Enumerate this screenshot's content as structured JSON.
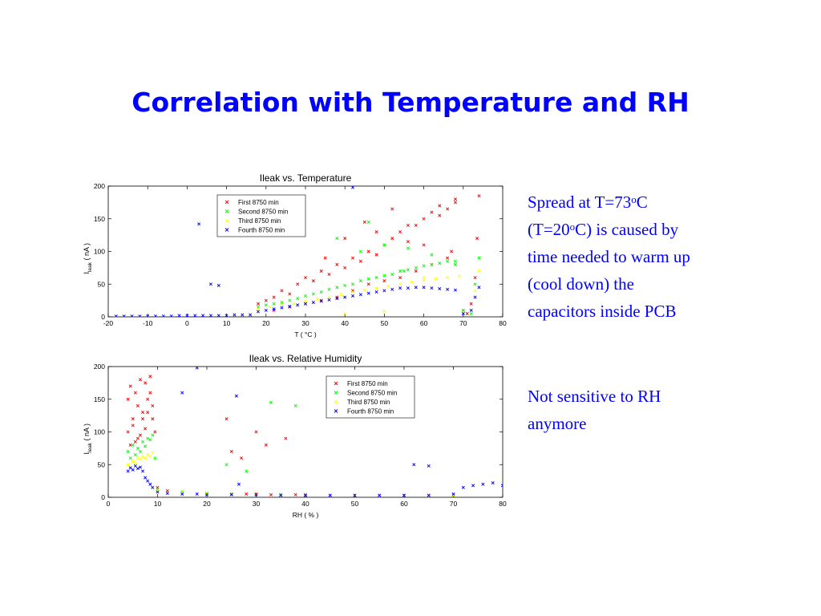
{
  "slide": {
    "title": "Correlation with Temperature and RH"
  },
  "notes": {
    "spread": {
      "line1_pre": "Spread at T=73",
      "line1_sup": "o",
      "line1_post": "C",
      "line2_pre": "(T=20",
      "line2_sup": "o",
      "line2_post": "C) is caused by",
      "line3": "time needed to warm up",
      "line4": "(cool down)  the",
      "line5": "capacitors inside PCB"
    },
    "rh": {
      "line1": "Not sensitive to RH",
      "line2": "anymore"
    }
  },
  "colors": {
    "title": "#0000ff",
    "note_text": "#0000ff",
    "first": "#ff0000",
    "second": "#00ff00",
    "third": "#ffff00",
    "fourth": "#0000ff"
  },
  "chart_data": [
    {
      "id": "temp",
      "type": "scatter",
      "title": "Ileak vs. Temperature",
      "xlabel": "T ( °C )",
      "ylabel_main": "I",
      "ylabel_sub": "leak",
      "ylabel_unit": "( nA )",
      "xlim": [
        -20,
        80
      ],
      "ylim": [
        0,
        200
      ],
      "xticks": [
        "-20",
        "-10",
        "0",
        "10",
        "20",
        "30",
        "40",
        "50",
        "60",
        "70",
        "80"
      ],
      "yticks": [
        "0",
        "50",
        "100",
        "150",
        "200"
      ],
      "grid": false,
      "legend_position": "top-left",
      "marker": "x",
      "series": [
        {
          "name": "First 8750 min",
          "color": "#ff0000",
          "x": [
            18,
            20,
            22,
            24,
            26,
            28,
            30,
            32,
            34,
            36,
            38,
            40,
            42,
            44,
            46,
            48,
            50,
            52,
            54,
            56,
            58,
            60,
            62,
            64,
            66,
            68,
            70,
            71,
            72,
            73,
            73.5,
            74,
            22,
            26,
            30,
            34,
            38,
            42,
            46,
            50,
            54,
            58,
            62,
            66,
            40,
            48,
            56,
            64,
            68,
            52,
            60,
            45,
            35,
            67
          ],
          "y": [
            20,
            25,
            30,
            40,
            35,
            50,
            60,
            55,
            70,
            65,
            80,
            75,
            90,
            85,
            100,
            95,
            110,
            120,
            130,
            115,
            140,
            150,
            160,
            170,
            165,
            180,
            10,
            5,
            20,
            60,
            120,
            185,
            10,
            15,
            20,
            25,
            30,
            40,
            50,
            55,
            60,
            70,
            80,
            90,
            120,
            130,
            140,
            155,
            175,
            165,
            110,
            145,
            90,
            100
          ]
        },
        {
          "name": "Second 8750 min",
          "color": "#00ff00",
          "x": [
            18,
            20,
            22,
            24,
            26,
            28,
            30,
            32,
            34,
            36,
            38,
            40,
            42,
            44,
            46,
            48,
            50,
            52,
            54,
            56,
            58,
            60,
            62,
            64,
            66,
            68,
            70,
            72,
            73,
            74,
            38,
            44,
            50,
            56,
            62,
            68,
            46,
            55
          ],
          "y": [
            15,
            18,
            20,
            22,
            25,
            28,
            32,
            35,
            38,
            42,
            45,
            48,
            50,
            55,
            58,
            60,
            63,
            65,
            70,
            72,
            75,
            78,
            80,
            82,
            85,
            85,
            10,
            5,
            50,
            90,
            120,
            100,
            110,
            105,
            95,
            80,
            145,
            70
          ]
        },
        {
          "name": "Third 8750 min",
          "color": "#ffff00",
          "x": [
            18,
            21,
            24,
            27,
            30,
            33,
            36,
            39,
            42,
            45,
            48,
            51,
            54,
            57,
            60,
            63,
            66,
            69,
            72,
            73,
            74,
            40,
            50,
            60
          ],
          "y": [
            12,
            15,
            18,
            20,
            24,
            27,
            30,
            34,
            38,
            41,
            44,
            47,
            50,
            53,
            56,
            58,
            60,
            62,
            10,
            40,
            70,
            5,
            8,
            60
          ]
        },
        {
          "name": "Fourth 8750 min",
          "color": "#0000ff",
          "x": [
            -18,
            -16,
            -14,
            -12,
            -10,
            -8,
            -6,
            -4,
            -2,
            0,
            2,
            4,
            6,
            8,
            10,
            12,
            14,
            16,
            18,
            20,
            22,
            24,
            26,
            28,
            30,
            32,
            34,
            36,
            38,
            40,
            42,
            44,
            46,
            48,
            50,
            52,
            54,
            56,
            58,
            60,
            62,
            64,
            66,
            68,
            70,
            72,
            73,
            74,
            3,
            6,
            8,
            42
          ],
          "y": [
            1,
            1,
            1,
            1,
            1,
            1,
            1,
            1,
            2,
            2,
            2,
            2,
            2,
            2,
            2,
            3,
            3,
            3,
            8,
            10,
            12,
            14,
            16,
            18,
            20,
            22,
            24,
            26,
            28,
            30,
            32,
            34,
            36,
            38,
            40,
            42,
            44,
            44,
            45,
            45,
            44,
            43,
            42,
            41,
            5,
            10,
            30,
            45,
            142,
            50,
            48,
            198
          ]
        }
      ]
    },
    {
      "id": "rh",
      "type": "scatter",
      "title": "Ileak vs. Relative Humidity",
      "xlabel": "RH ( % )",
      "ylabel_main": "I",
      "ylabel_sub": "leak",
      "ylabel_unit": "( nA )",
      "xlim": [
        0,
        80
      ],
      "ylim": [
        0,
        200
      ],
      "xticks": [
        "0",
        "10",
        "20",
        "30",
        "40",
        "50",
        "60",
        "70",
        "80"
      ],
      "yticks": [
        "0",
        "50",
        "100",
        "150",
        "200"
      ],
      "grid": false,
      "legend_position": "top-right",
      "marker": "x",
      "series": [
        {
          "name": "First 8750 min",
          "color": "#ff0000",
          "x": [
            4,
            4.5,
            5,
            5.5,
            6,
            6.5,
            7,
            7.5,
            8,
            8.5,
            9,
            9.5,
            4,
            5,
            6,
            7,
            8,
            9,
            4.5,
            5.5,
            6.5,
            7.5,
            8.5,
            10,
            12,
            15,
            20,
            25,
            28,
            30,
            33,
            35,
            38,
            40,
            45,
            50,
            55,
            60,
            65,
            70,
            24,
            27,
            32,
            36,
            25,
            30
          ],
          "y": [
            150,
            170,
            120,
            160,
            140,
            180,
            130,
            175,
            150,
            185,
            120,
            100,
            100,
            110,
            90,
            120,
            130,
            140,
            80,
            85,
            95,
            105,
            160,
            15,
            10,
            8,
            6,
            5,
            5,
            5,
            4,
            4,
            4,
            4,
            3,
            3,
            3,
            3,
            3,
            3,
            120,
            60,
            80,
            90,
            70,
            100
          ]
        },
        {
          "name": "Second 8750 min",
          "color": "#00ff00",
          "x": [
            4,
            5,
            6,
            7,
            8,
            9,
            9.5,
            4.5,
            5.5,
            6.5,
            7.5,
            8.5,
            10,
            15,
            20,
            25,
            30,
            35,
            40,
            50,
            60,
            70,
            24,
            28,
            33,
            38
          ],
          "y": [
            70,
            80,
            75,
            85,
            90,
            95,
            60,
            60,
            65,
            70,
            78,
            88,
            12,
            8,
            6,
            5,
            4,
            4,
            3,
            3,
            3,
            3,
            50,
            40,
            145,
            140
          ]
        },
        {
          "name": "Third 8750 min",
          "color": "#ffff00",
          "x": [
            4,
            5,
            6,
            7,
            8,
            9,
            4.5,
            5.5,
            6.5,
            7.5,
            8.5,
            10,
            15,
            20,
            30,
            40,
            50,
            60,
            70
          ],
          "y": [
            50,
            55,
            60,
            62,
            65,
            68,
            45,
            52,
            58,
            60,
            63,
            10,
            7,
            5,
            4,
            3,
            3,
            3,
            3
          ]
        },
        {
          "name": "Fourth 8750 min",
          "color": "#0000ff",
          "x": [
            4,
            4.5,
            5,
            5.5,
            6,
            6.5,
            7,
            7.5,
            8,
            8.5,
            9,
            10,
            12,
            15,
            18,
            20,
            25,
            30,
            35,
            40,
            45,
            50,
            55,
            60,
            65,
            70,
            72,
            74,
            76,
            78,
            80,
            15,
            18,
            26,
            26.5,
            62,
            65
          ],
          "y": [
            40,
            45,
            42,
            48,
            44,
            46,
            40,
            30,
            25,
            20,
            15,
            8,
            6,
            5,
            5,
            4,
            4,
            4,
            3,
            3,
            3,
            3,
            3,
            3,
            3,
            5,
            15,
            18,
            20,
            22,
            18,
            160,
            198,
            155,
            20,
            50,
            48
          ]
        }
      ]
    }
  ]
}
